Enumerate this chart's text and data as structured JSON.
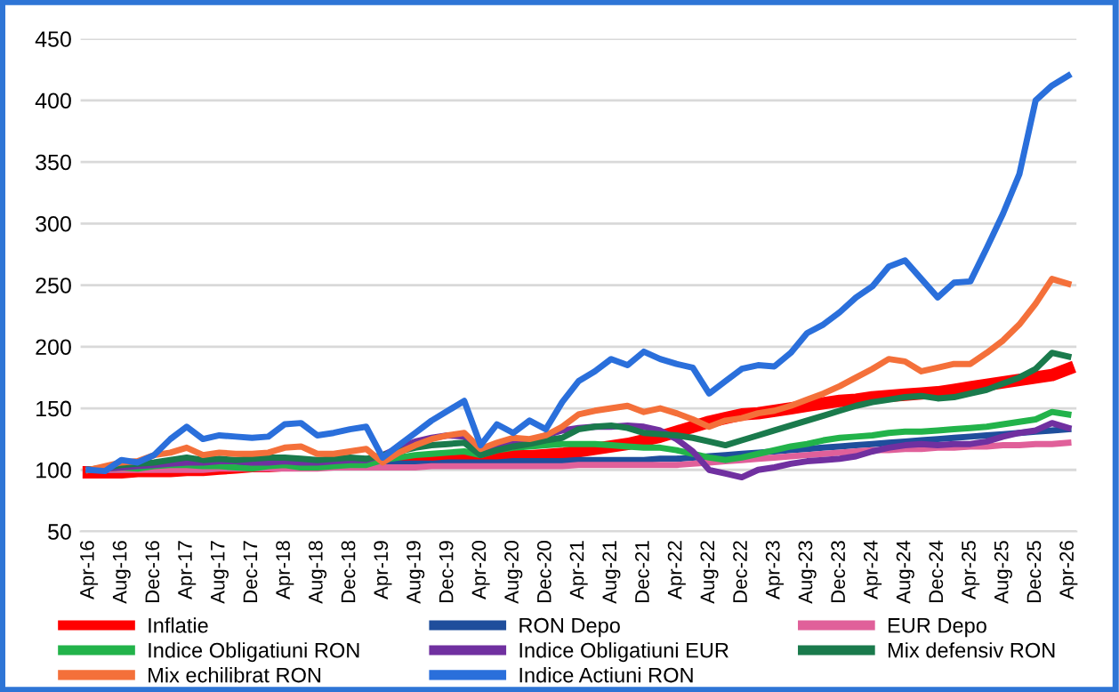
{
  "chart_data": {
    "type": "line",
    "categories": [
      "Apr-16",
      null,
      "Aug-16",
      null,
      "Dec-16",
      null,
      "Apr-17",
      null,
      "Aug-17",
      null,
      "Dec-17",
      null,
      "Apr-18",
      null,
      "Aug-18",
      null,
      "Dec-18",
      null,
      "Apr-19",
      null,
      "Aug-19",
      null,
      "Dec-19",
      null,
      "Apr-20",
      null,
      "Aug-20",
      null,
      "Dec-20",
      null,
      "Apr-21",
      null,
      "Aug-21",
      null,
      "Dec-21",
      null,
      "Apr-22",
      null,
      "Aug-22",
      null,
      "Dec-22",
      null,
      "Apr-23",
      null,
      "Aug-23",
      null,
      "Dec-23",
      null,
      "Apr-24",
      null,
      "Aug-24",
      null,
      "Dec-24",
      null,
      "Apr-25",
      null,
      "Aug-25",
      null,
      "Dec-25",
      null,
      "Apr-26"
    ],
    "series": [
      {
        "name": "Inflatie",
        "color": "#ff0000",
        "values": [
          98,
          98,
          98,
          99,
          99,
          99,
          100,
          100,
          101,
          102,
          103,
          103,
          104,
          104,
          105,
          105,
          106,
          106,
          107,
          107,
          108,
          108,
          109,
          109,
          110,
          110,
          111,
          111,
          112,
          113,
          115,
          117,
          119,
          121,
          124,
          127,
          131,
          135,
          139,
          142,
          145,
          146,
          148,
          150,
          152,
          154,
          156,
          157,
          159,
          160,
          161,
          162,
          163,
          165,
          167,
          169,
          171,
          173,
          175,
          177,
          182
        ]
      },
      {
        "name": "RON Depo",
        "color": "#1f4e9c",
        "values": [
          100,
          100,
          100,
          101,
          101,
          101,
          101,
          102,
          102,
          102,
          102,
          103,
          103,
          103,
          103,
          104,
          104,
          104,
          105,
          105,
          105,
          105,
          106,
          106,
          106,
          106,
          107,
          107,
          107,
          107,
          108,
          108,
          108,
          108,
          108,
          109,
          109,
          110,
          111,
          112,
          113,
          114,
          115,
          116,
          117,
          118,
          119,
          120,
          121,
          122,
          123,
          124,
          125,
          126,
          127,
          128,
          129,
          130,
          131,
          132,
          133
        ]
      },
      {
        "name": "EUR Depo",
        "color": "#e0609a",
        "values": [
          100,
          100,
          100,
          100,
          100,
          100,
          100,
          100,
          101,
          101,
          101,
          101,
          101,
          101,
          101,
          102,
          102,
          102,
          102,
          102,
          102,
          103,
          103,
          103,
          103,
          103,
          103,
          103,
          103,
          103,
          104,
          104,
          104,
          104,
          104,
          104,
          104,
          105,
          106,
          107,
          108,
          109,
          110,
          111,
          112,
          113,
          114,
          115,
          116,
          116,
          117,
          117,
          118,
          118,
          119,
          119,
          120,
          120,
          121,
          121,
          122
        ]
      },
      {
        "name": "Indice Obligatiuni RON",
        "color": "#22b34a",
        "values": [
          100,
          101,
          102,
          101,
          103,
          104,
          104,
          103,
          103,
          102,
          101,
          103,
          104,
          102,
          102,
          103,
          104,
          104,
          108,
          110,
          112,
          113,
          114,
          115,
          112,
          116,
          118,
          119,
          120,
          121,
          121,
          121,
          120,
          119,
          118,
          118,
          116,
          113,
          110,
          108,
          110,
          113,
          116,
          119,
          121,
          124,
          126,
          127,
          128,
          130,
          131,
          131,
          132,
          133,
          134,
          135,
          137,
          139,
          141,
          147,
          145
        ]
      },
      {
        "name": "Indice Obligatiuni EUR",
        "color": "#7030a0",
        "values": [
          100,
          101,
          102,
          103,
          104,
          105,
          106,
          106,
          107,
          107,
          106,
          106,
          107,
          106,
          106,
          107,
          108,
          108,
          112,
          118,
          123,
          126,
          128,
          127,
          115,
          120,
          122,
          124,
          128,
          132,
          134,
          135,
          135,
          136,
          135,
          132,
          125,
          115,
          100,
          97,
          94,
          100,
          102,
          105,
          107,
          108,
          109,
          111,
          115,
          118,
          120,
          121,
          120,
          121,
          121,
          123,
          127,
          130,
          132,
          138,
          134
        ]
      },
      {
        "name": "Mix defensiv RON",
        "color": "#1a7a4c",
        "values": [
          100,
          102,
          104,
          105,
          106,
          108,
          110,
          108,
          109,
          108,
          109,
          110,
          110,
          109,
          108,
          109,
          110,
          109,
          112,
          115,
          118,
          120,
          121,
          122,
          112,
          116,
          119,
          121,
          124,
          126,
          133,
          135,
          136,
          134,
          130,
          129,
          128,
          126,
          123,
          120,
          124,
          128,
          132,
          136,
          140,
          144,
          148,
          152,
          155,
          157,
          159,
          160,
          158,
          159,
          162,
          165,
          170,
          175,
          182,
          195,
          192
        ]
      },
      {
        "name": "Mix echilibrat RON",
        "color": "#f4703a",
        "values": [
          100,
          103,
          106,
          107,
          112,
          114,
          118,
          112,
          114,
          113,
          113,
          114,
          118,
          119,
          113,
          113,
          115,
          117,
          106,
          114,
          120,
          125,
          128,
          130,
          117,
          122,
          126,
          125,
          128,
          135,
          145,
          148,
          150,
          152,
          147,
          150,
          146,
          141,
          135,
          140,
          142,
          146,
          148,
          152,
          157,
          162,
          168,
          175,
          182,
          190,
          188,
          180,
          183,
          186,
          186,
          195,
          205,
          218,
          235,
          255,
          251
        ]
      },
      {
        "name": "Indice Actiuni RON",
        "color": "#2a6fdb",
        "values": [
          100,
          99,
          108,
          106,
          112,
          125,
          135,
          125,
          128,
          127,
          126,
          127,
          137,
          138,
          128,
          130,
          133,
          135,
          110,
          120,
          130,
          140,
          148,
          156,
          120,
          137,
          130,
          140,
          133,
          155,
          172,
          180,
          190,
          185,
          196,
          190,
          186,
          183,
          162,
          172,
          182,
          185,
          184,
          195,
          211,
          218,
          228,
          240,
          249,
          265,
          270,
          255,
          240,
          252,
          253,
          280,
          308,
          340,
          400,
          412,
          420
        ]
      }
    ],
    "ylim": [
      50,
      450
    ],
    "yticks": [
      50,
      100,
      150,
      200,
      250,
      300,
      350,
      400,
      450
    ],
    "grid": "y",
    "legend": "bottom",
    "line_style": "solid",
    "marker": "none"
  }
}
